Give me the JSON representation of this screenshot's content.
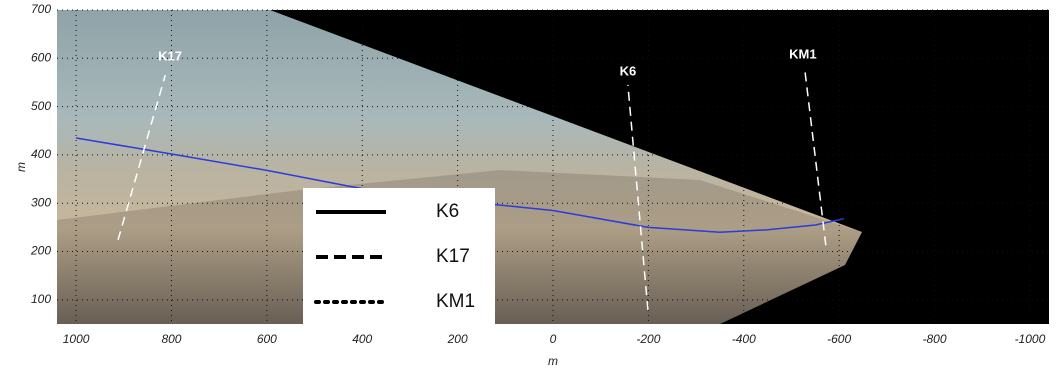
{
  "chart_data": {
    "type": "line",
    "xlabel": "m",
    "ylabel": "m",
    "xlim": [
      1040,
      -1040
    ],
    "ylim": [
      50,
      700
    ],
    "xticks": [
      1000,
      800,
      600,
      400,
      200,
      0,
      -200,
      -400,
      -600,
      -800,
      -1000
    ],
    "yticks": [
      100,
      200,
      300,
      400,
      500,
      600,
      700
    ],
    "grid": true,
    "series": [
      {
        "color": "#2b3bdc",
        "x": [
          1000,
          800,
          600,
          400,
          200,
          0,
          -200,
          -350,
          -450,
          -550,
          -610
        ],
        "values": [
          435,
          402,
          368,
          330,
          305,
          285,
          250,
          240,
          245,
          255,
          268
        ]
      }
    ],
    "transects": [
      {
        "label": "K17",
        "x": [
          912,
          813
        ],
        "values": [
          224,
          565
        ],
        "label_x": 803,
        "label_y": 603
      },
      {
        "label": "K6",
        "x": [
          -199,
          -157
        ],
        "values": [
          79,
          545
        ],
        "label_x": -157,
        "label_y": 572
      },
      {
        "label": "KM1",
        "x": [
          -572,
          -528
        ],
        "values": [
          213,
          576
        ],
        "label_x": -524,
        "label_y": 607
      }
    ],
    "legend": [
      {
        "label": "K6",
        "style": "solid"
      },
      {
        "label": "K17",
        "style": "dashed"
      },
      {
        "label": "KM1",
        "style": "dotted"
      }
    ]
  }
}
